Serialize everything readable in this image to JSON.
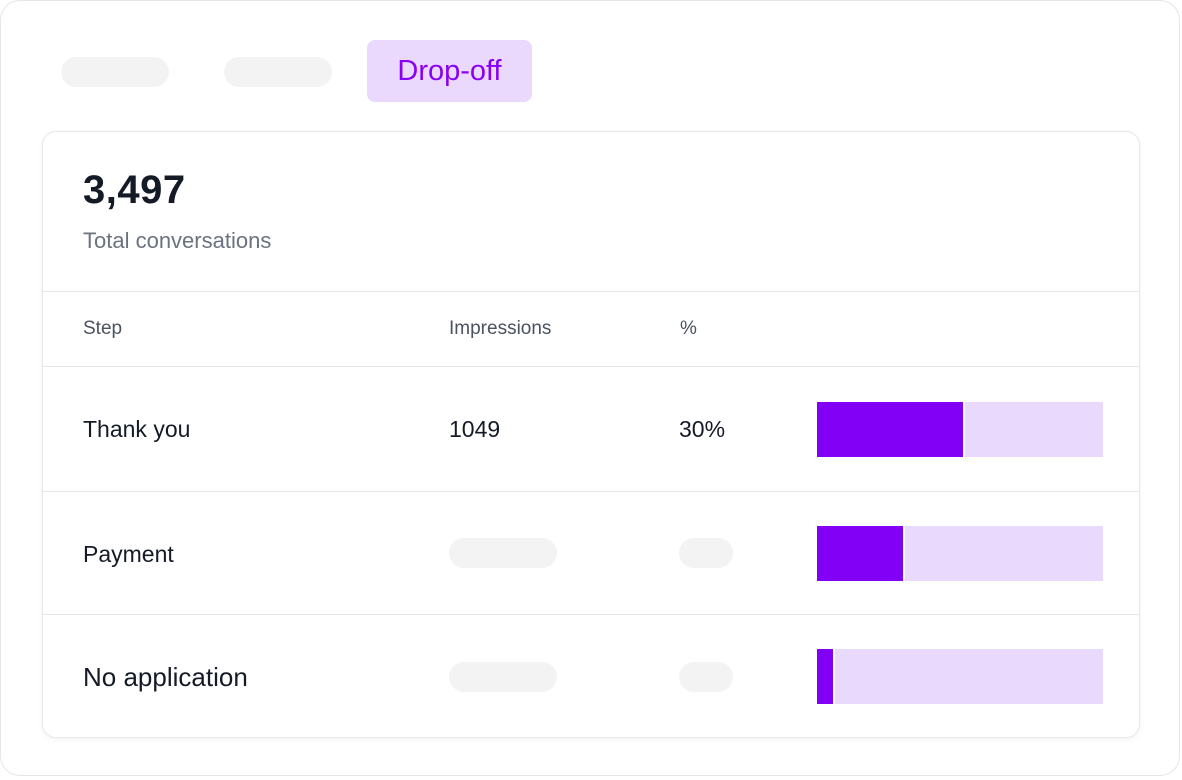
{
  "tabs": {
    "active_label": "Drop-off"
  },
  "summary": {
    "total_value": "3,497",
    "total_label": "Total conversations"
  },
  "table": {
    "headers": {
      "step": "Step",
      "impressions": "Impressions",
      "percent": "%"
    },
    "rows": [
      {
        "step": "Thank you",
        "impressions": "1049",
        "percent": "30%",
        "fill": 0.51
      },
      {
        "step": "Payment",
        "impressions": null,
        "percent": null,
        "fill": 0.3
      },
      {
        "step": "No application",
        "impressions": null,
        "percent": null,
        "fill": 0.055
      }
    ]
  },
  "colors": {
    "accent": "#8200f5",
    "accent_light": "#e9d9fc",
    "tab_active_bg": "#ead9fc",
    "tab_active_text": "#8a00f5",
    "skeleton": "#f3f3f4"
  }
}
